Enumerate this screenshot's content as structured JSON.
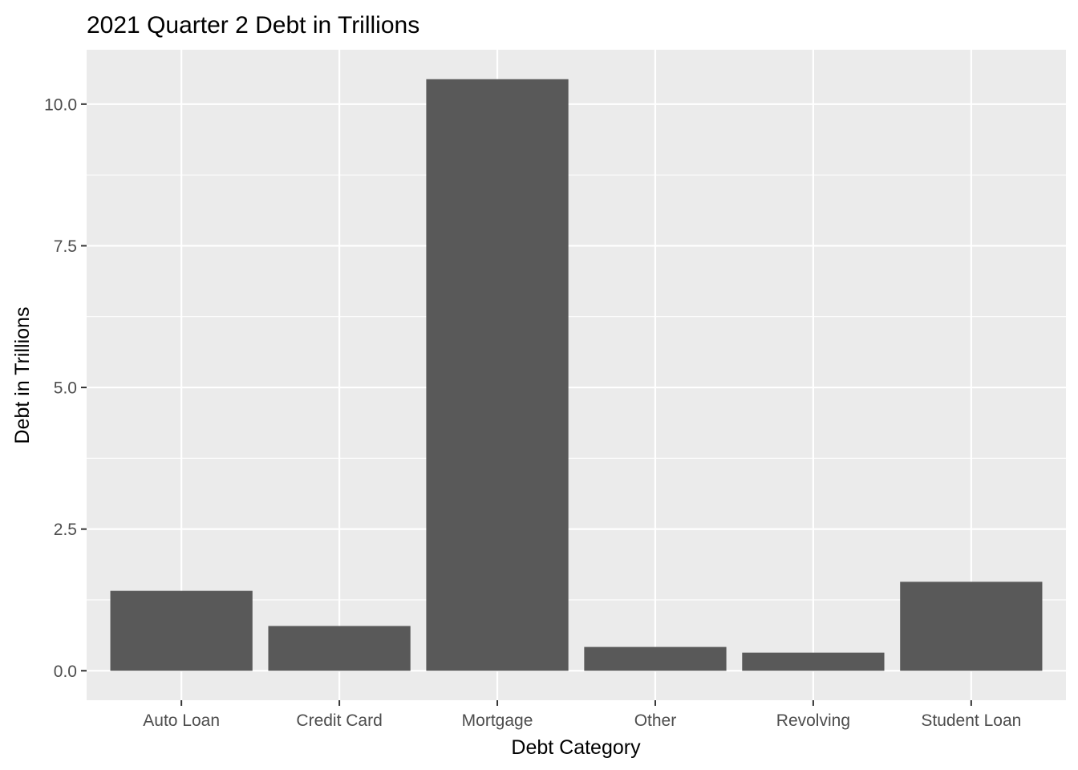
{
  "chart_data": {
    "type": "bar",
    "title": "2021 Quarter 2 Debt in Trillions",
    "xlabel": "Debt Category",
    "ylabel": "Debt in Trillions",
    "categories": [
      "Auto Loan",
      "Credit Card",
      "Mortgage",
      "Other",
      "Revolving",
      "Student Loan"
    ],
    "values": [
      1.41,
      0.79,
      10.44,
      0.42,
      0.32,
      1.57
    ],
    "ylim": [
      -0.52,
      10.96
    ],
    "yticks": [
      0.0,
      2.5,
      5.0,
      7.5,
      10.0
    ],
    "ytick_labels": [
      "0.0",
      "2.5",
      "5.0",
      "7.5",
      "10.0"
    ],
    "grid": true,
    "legend": "none",
    "colors": {
      "bar": "#595959",
      "panel_background": "#ebebeb",
      "grid": "#ffffff",
      "tick_label": "#4d4d4d",
      "tick_mark": "#333333"
    }
  }
}
